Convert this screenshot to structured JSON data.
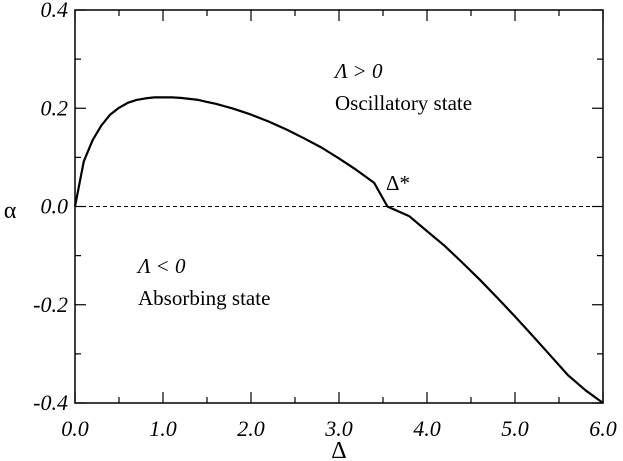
{
  "chart_data": {
    "type": "line",
    "xlabel": "Δ",
    "ylabel": "α",
    "xlim": [
      0.0,
      6.0
    ],
    "ylim": [
      -0.4,
      0.4
    ],
    "xticks": [
      "0.0",
      "1.0",
      "2.0",
      "3.0",
      "4.0",
      "5.0",
      "6.0"
    ],
    "yticks": [
      "-0.4",
      "-0.2",
      "0.0",
      "0.2",
      "0.4"
    ],
    "grid": false,
    "series": [
      {
        "style": "solid",
        "x": [
          0.0,
          0.1,
          0.2,
          0.3,
          0.4,
          0.5,
          0.6,
          0.7,
          0.8,
          0.9,
          1.0,
          1.1,
          1.2,
          1.3,
          1.4,
          1.5,
          1.6,
          1.8,
          2.0,
          2.2,
          2.4,
          2.6,
          2.8,
          3.0,
          3.2,
          3.4,
          3.55,
          3.8,
          4.0,
          4.2,
          4.4,
          4.6,
          4.8,
          5.0,
          5.2,
          5.4,
          5.6,
          5.8,
          6.0
        ],
        "y": [
          0.0,
          0.092,
          0.135,
          0.165,
          0.187,
          0.201,
          0.211,
          0.217,
          0.22,
          0.222,
          0.222,
          0.222,
          0.221,
          0.219,
          0.217,
          0.213,
          0.209,
          0.199,
          0.187,
          0.173,
          0.157,
          0.139,
          0.12,
          0.098,
          0.074,
          0.048,
          0.0,
          -0.02,
          -0.05,
          -0.08,
          -0.114,
          -0.149,
          -0.186,
          -0.224,
          -0.263,
          -0.303,
          -0.343,
          -0.374,
          -0.4
        ]
      },
      {
        "style": "dashed",
        "x": [
          0.0,
          6.0
        ],
        "y": [
          0.0,
          0.0
        ]
      }
    ],
    "annotations": [
      {
        "text": "Λ > 0",
        "x": 2.7,
        "y": 0.29
      },
      {
        "text": "Oscillatory state",
        "x": 2.7,
        "y": 0.215
      },
      {
        "text": "Δ*",
        "x": 3.2,
        "y": 0.035
      },
      {
        "text": "Λ < 0",
        "x": 0.6,
        "y": -0.12
      },
      {
        "text": "Absorbing state",
        "x": 0.6,
        "y": -0.185
      }
    ]
  }
}
